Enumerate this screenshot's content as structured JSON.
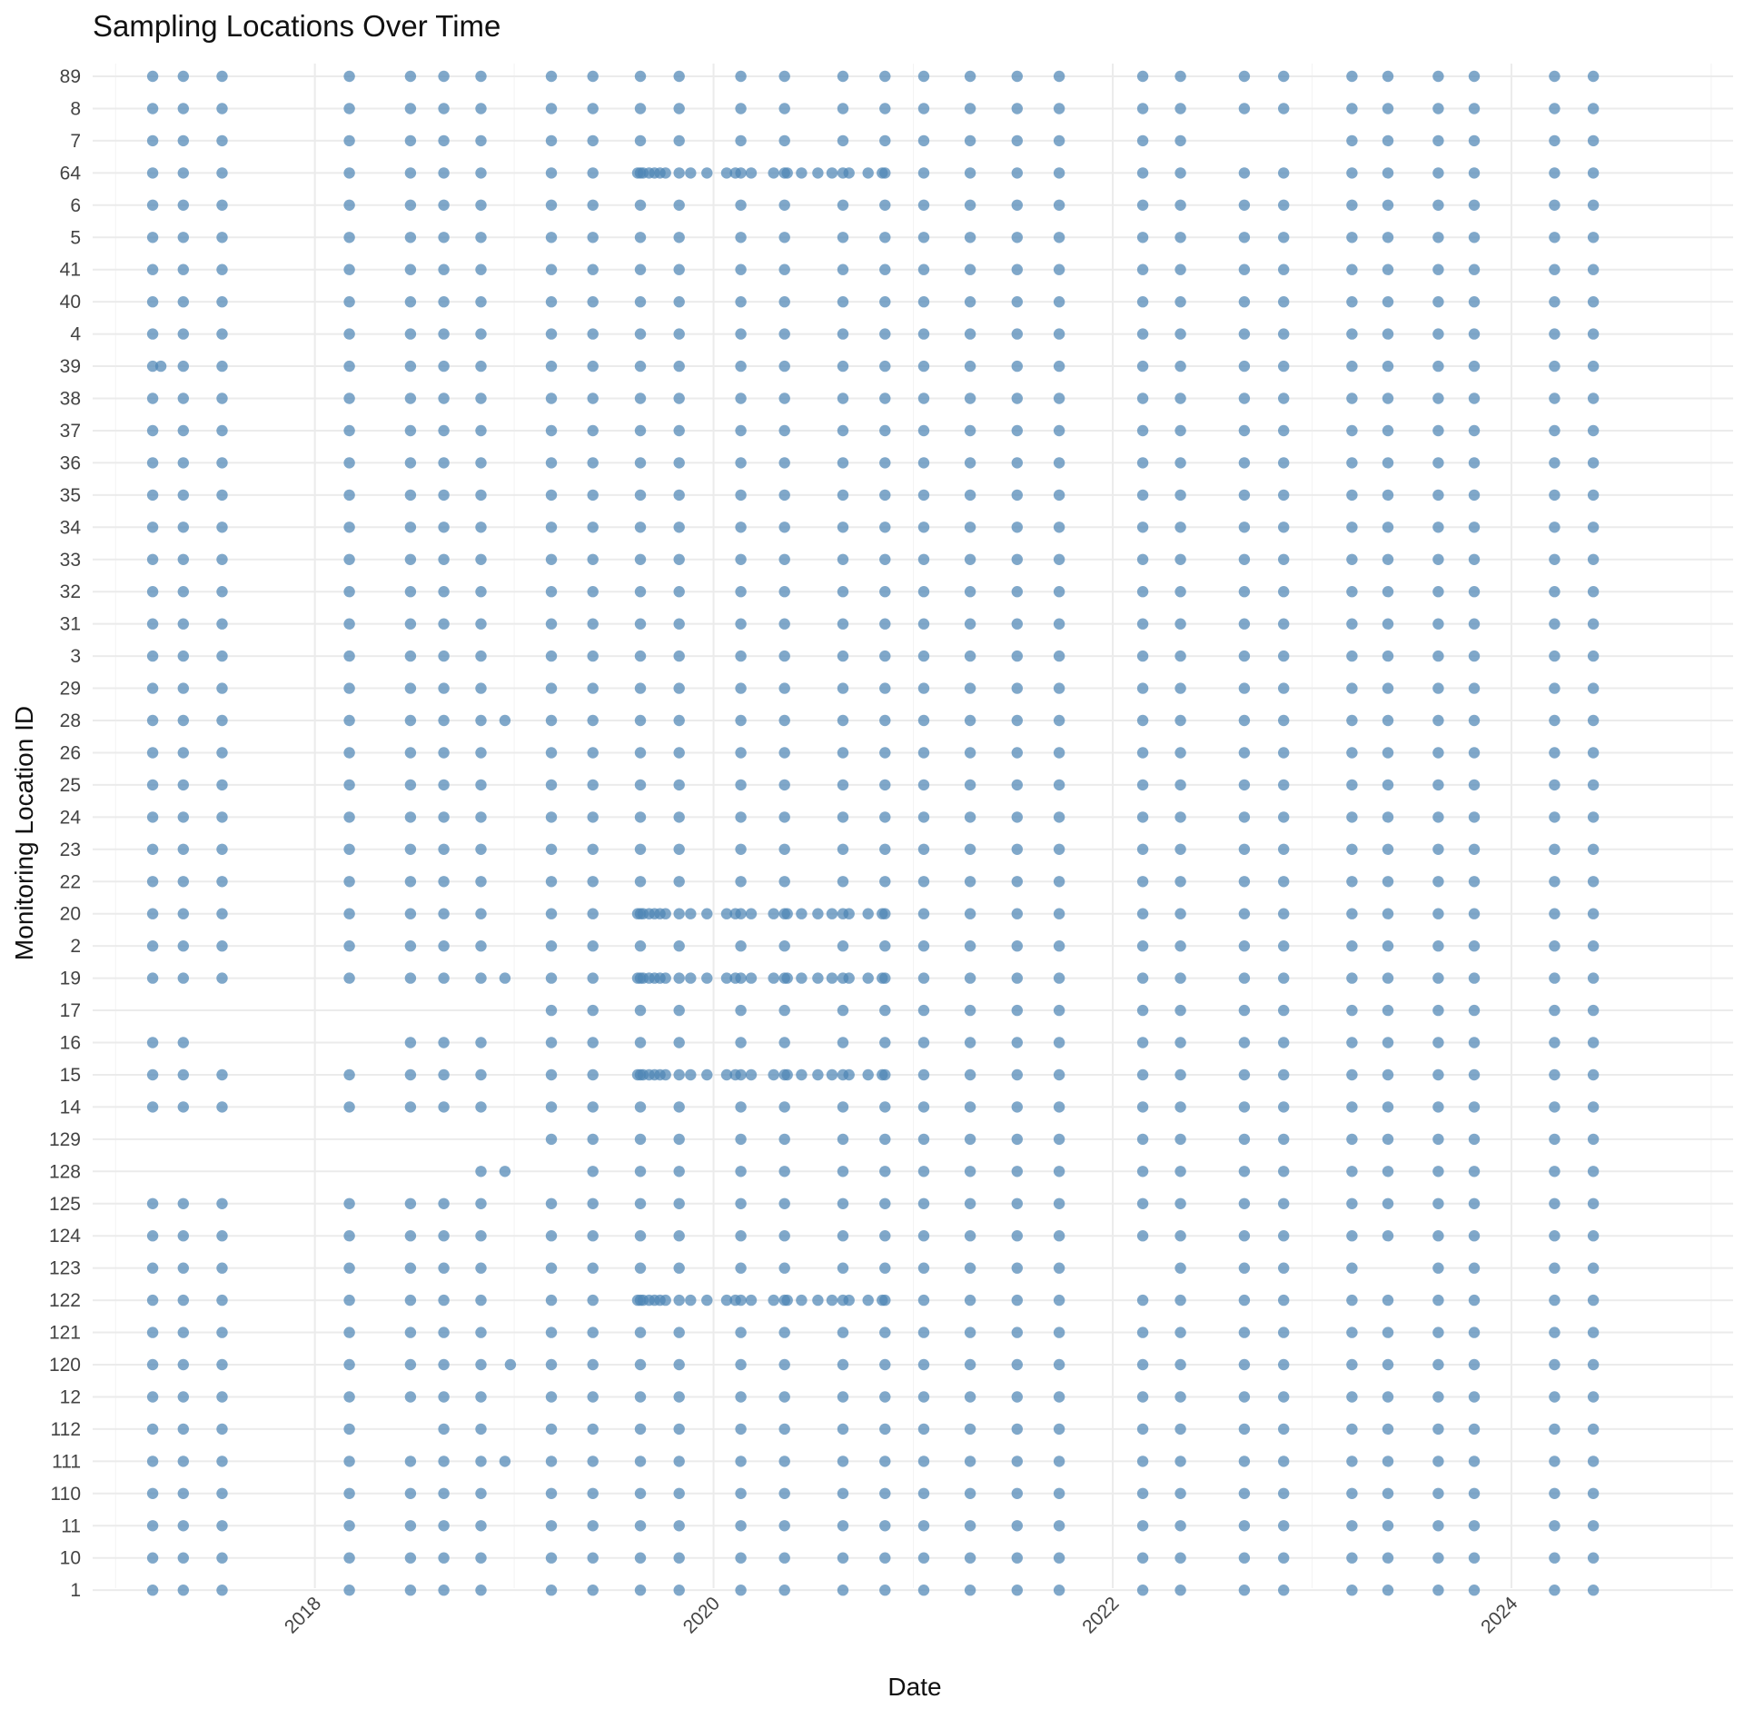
{
  "chart_data": {
    "type": "scatter",
    "title": "Sampling Locations Over Time",
    "xlabel": "Date",
    "ylabel": "Monitoring Location ID",
    "x_ticks": [
      "2018",
      "2020",
      "2022",
      "2024"
    ],
    "xlim": [
      "2016-11-20",
      "2025-02-10"
    ],
    "point_color": "#4f86b6",
    "grid": true,
    "legend": "none",
    "y_categories": [
      "89",
      "8",
      "7",
      "64",
      "6",
      "5",
      "41",
      "40",
      "4",
      "39",
      "38",
      "37",
      "36",
      "35",
      "34",
      "33",
      "32",
      "31",
      "3",
      "29",
      "28",
      "26",
      "25",
      "24",
      "23",
      "22",
      "20",
      "2",
      "19",
      "17",
      "16",
      "15",
      "14",
      "129",
      "128",
      "125",
      "124",
      "123",
      "122",
      "121",
      "120",
      "12",
      "112",
      "111",
      "110",
      "11",
      "10",
      "1"
    ],
    "base_dates": [
      "2017-03-10",
      "2017-05-05",
      "2017-07-15",
      "2018-03-05",
      "2018-06-25",
      "2018-08-25",
      "2018-11-01",
      "2019-03-10",
      "2019-05-25",
      "2019-08-20",
      "2019-10-30",
      "2020-02-20",
      "2020-05-10",
      "2020-08-25",
      "2020-11-10",
      "2021-01-20",
      "2021-04-15",
      "2021-07-10",
      "2021-09-25",
      "2022-02-25",
      "2022-05-05",
      "2022-08-30",
      "2022-11-10",
      "2023-03-15",
      "2023-05-20",
      "2023-08-20",
      "2023-10-25",
      "2024-03-20",
      "2024-05-30"
    ],
    "frequent_sites": [
      "64",
      "20",
      "19",
      "15",
      "122"
    ],
    "frequent_extra_dates": [
      "2019-08-15",
      "2019-08-25",
      "2019-09-05",
      "2019-09-15",
      "2019-09-25",
      "2019-10-05",
      "2019-11-20",
      "2019-12-20",
      "2020-01-25",
      "2020-02-10",
      "2020-03-10",
      "2020-04-20",
      "2020-05-15",
      "2020-06-10",
      "2020-07-10",
      "2020-08-05",
      "2020-09-05",
      "2020-10-10",
      "2020-11-05"
    ],
    "missing": {
      "17": [
        "2017-03-10",
        "2017-05-05",
        "2017-07-15",
        "2018-03-05",
        "2018-06-25",
        "2018-08-25",
        "2018-11-01"
      ],
      "129": [
        "2017-03-10",
        "2017-05-05",
        "2017-07-15",
        "2018-03-05",
        "2018-06-25",
        "2018-08-25",
        "2018-11-01"
      ],
      "128": [
        "2017-03-10",
        "2017-05-05",
        "2017-07-15",
        "2018-03-05",
        "2018-06-25",
        "2018-08-25",
        "2019-03-10"
      ],
      "16": [
        "2017-07-15",
        "2018-03-05"
      ],
      "7": [
        "2022-08-30",
        "2022-11-10"
      ],
      "123": [
        "2022-02-25",
        "2023-05-20"
      ],
      "112": [
        "2018-06-25"
      ]
    },
    "extra": {
      "39": [
        "2017-03-25"
      ],
      "28": [
        "2018-12-15"
      ],
      "19": [
        "2018-12-15"
      ],
      "120": [
        "2018-12-25"
      ],
      "111": [
        "2018-12-15"
      ],
      "128": [
        "2018-12-15"
      ]
    }
  }
}
